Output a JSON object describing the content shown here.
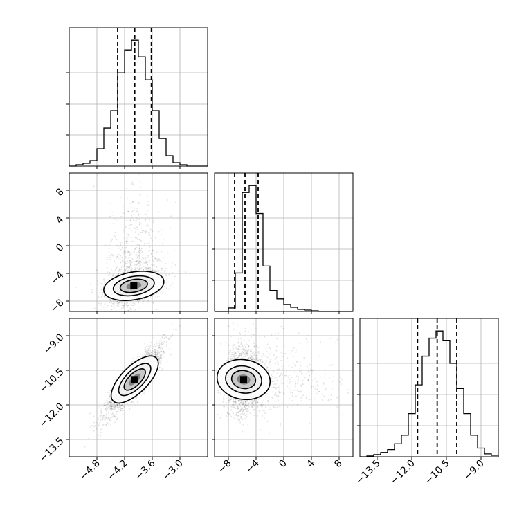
{
  "chart_data": [
    {
      "type": "histogram",
      "panel": "hist-param-1",
      "xlim": [
        -5.4,
        -2.4
      ],
      "bins": [
        -5.4,
        -5.25,
        -5.1,
        -4.95,
        -4.8,
        -4.65,
        -4.5,
        -4.35,
        -4.2,
        -4.05,
        -3.9,
        -3.75,
        -3.6,
        -3.45,
        -3.3,
        -3.15,
        -3.0,
        -2.85,
        -2.7,
        -2.55,
        -2.4
      ],
      "counts": [
        0,
        2,
        4,
        8,
        25,
        55,
        80,
        135,
        168,
        182,
        158,
        125,
        80,
        40,
        15,
        5,
        2,
        0,
        0,
        0
      ],
      "quantiles": [
        -4.35,
        -3.98,
        -3.62
      ],
      "xticks": [
        "−4.8",
        "−4.2",
        "−3.6",
        "−3.0"
      ],
      "grid": true
    },
    {
      "type": "histogram",
      "panel": "hist-param-2",
      "xlim": [
        -10,
        10
      ],
      "bins": [
        -10,
        -9,
        -8,
        -7,
        -6,
        -5,
        -4,
        -3,
        -2,
        -1,
        0,
        1,
        2,
        3,
        4,
        5,
        6,
        7,
        8,
        9,
        10
      ],
      "counts": [
        0,
        0,
        5,
        55,
        170,
        180,
        140,
        65,
        30,
        18,
        10,
        6,
        3,
        2,
        1,
        0,
        0,
        0,
        0,
        0
      ],
      "quantiles": [
        -7.1,
        -5.6,
        -3.7
      ],
      "xticks": [
        "−8",
        "−4",
        "0",
        "4",
        "8"
      ],
      "grid": true
    },
    {
      "type": "histogram",
      "panel": "hist-param-3",
      "xlim": [
        -14.25,
        -8.25
      ],
      "bins": [
        -14.25,
        -13.95,
        -13.65,
        -13.35,
        -13.05,
        -12.75,
        -12.45,
        -12.15,
        -11.85,
        -11.55,
        -11.25,
        -10.95,
        -10.65,
        -10.35,
        -10.05,
        -9.75,
        -9.45,
        -9.15,
        -8.85,
        -8.55,
        -8.25
      ],
      "counts": [
        0,
        1,
        3,
        6,
        10,
        18,
        30,
        60,
        100,
        140,
        165,
        175,
        162,
        130,
        95,
        60,
        30,
        12,
        4,
        2
      ],
      "quantiles": [
        -11.75,
        -10.9,
        -10.05
      ],
      "xticks": [
        "−13.5",
        "−12.0",
        "−10.5",
        "−9.0"
      ],
      "grid": true
    },
    {
      "type": "scatter-density",
      "panel": "joint-param-1-param-2",
      "xlim": [
        -5.4,
        -2.4
      ],
      "ylim": [
        -9.5,
        10.5
      ],
      "yticks": [
        "8",
        "4",
        "0",
        "−4",
        "−8"
      ],
      "center": [
        -4.0,
        -5.8
      ],
      "contours": true,
      "grid": true
    },
    {
      "type": "scatter-density",
      "panel": "joint-param-1-param-3",
      "xlim": [
        -5.4,
        -2.4
      ],
      "ylim": [
        -14.25,
        -8.25
      ],
      "xticks": [
        "−4.8",
        "−4.2",
        "−3.6",
        "−3.0"
      ],
      "yticks": [
        "−9.0",
        "−10.5",
        "−12.0",
        "−13.5"
      ],
      "center": [
        -3.98,
        -10.9
      ],
      "contours": true,
      "grid": true
    },
    {
      "type": "scatter-density",
      "panel": "joint-param-2-param-3",
      "xlim": [
        -10,
        10
      ],
      "ylim": [
        -14.25,
        -8.25
      ],
      "xticks": [
        "−8",
        "−4",
        "0",
        "4",
        "8"
      ],
      "center": [
        -5.8,
        -10.9
      ],
      "contours": true,
      "grid": true
    }
  ]
}
